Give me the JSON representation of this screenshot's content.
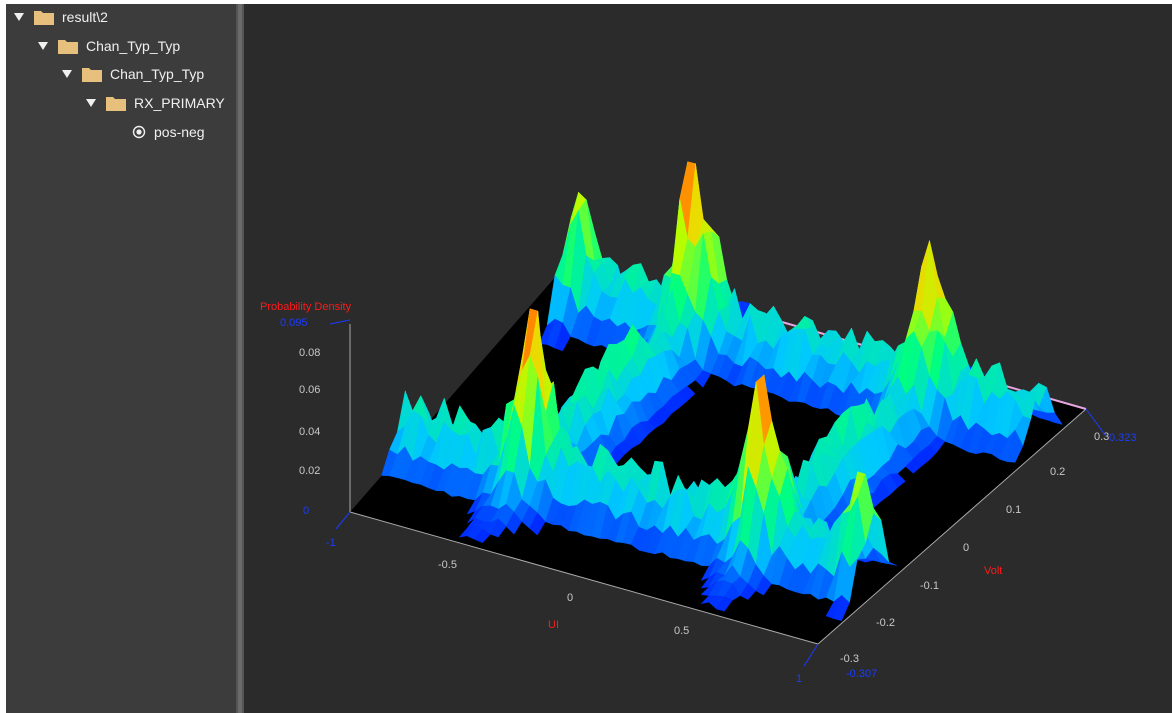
{
  "tree": [
    {
      "label": "result\\2",
      "level": 0,
      "kind": "folder",
      "expanded": true
    },
    {
      "label": "Chan_Typ_Typ",
      "level": 1,
      "kind": "folder",
      "expanded": true
    },
    {
      "label": "Chan_Typ_Typ",
      "level": 2,
      "kind": "folder",
      "expanded": true
    },
    {
      "label": "RX_PRIMARY",
      "level": 3,
      "kind": "folder",
      "expanded": true
    },
    {
      "label": "pos-neg",
      "level": 4,
      "kind": "radio",
      "selected": true
    }
  ],
  "colors": {
    "sidebar_bg": "#3c3c3c",
    "plot_bg": "#2b2b2b",
    "folder": "#e8c07d",
    "axis_title": "#ff1a1a",
    "axis_limit": "#1a3cff",
    "tick_text": "#c8c8c8",
    "edge_line": "#e8a6e0"
  },
  "chart_data": {
    "type": "surface3d",
    "z_axis": {
      "title": "Probability Density",
      "max_label": "0.095",
      "min_label": "0",
      "ticks": [
        "0.08",
        "0.06",
        "0.04",
        "0.02"
      ]
    },
    "x_axis": {
      "title": "UI",
      "min_label": "-1",
      "max_label": "1",
      "ticks": [
        "-0.5",
        "0",
        "0.5"
      ]
    },
    "y_axis": {
      "title": "Volt",
      "min_label": "-0.307",
      "max_label": "0.323",
      "ticks": [
        "-0.3",
        "-0.2",
        "-0.1",
        "0",
        "0.1",
        "0.2",
        "0.3"
      ]
    },
    "colormap": [
      "#0000ff",
      "#00c8ff",
      "#00ff80",
      "#b4ff00",
      "#ffcc00",
      "#ff2000"
    ],
    "peak_value": 0.095
  }
}
